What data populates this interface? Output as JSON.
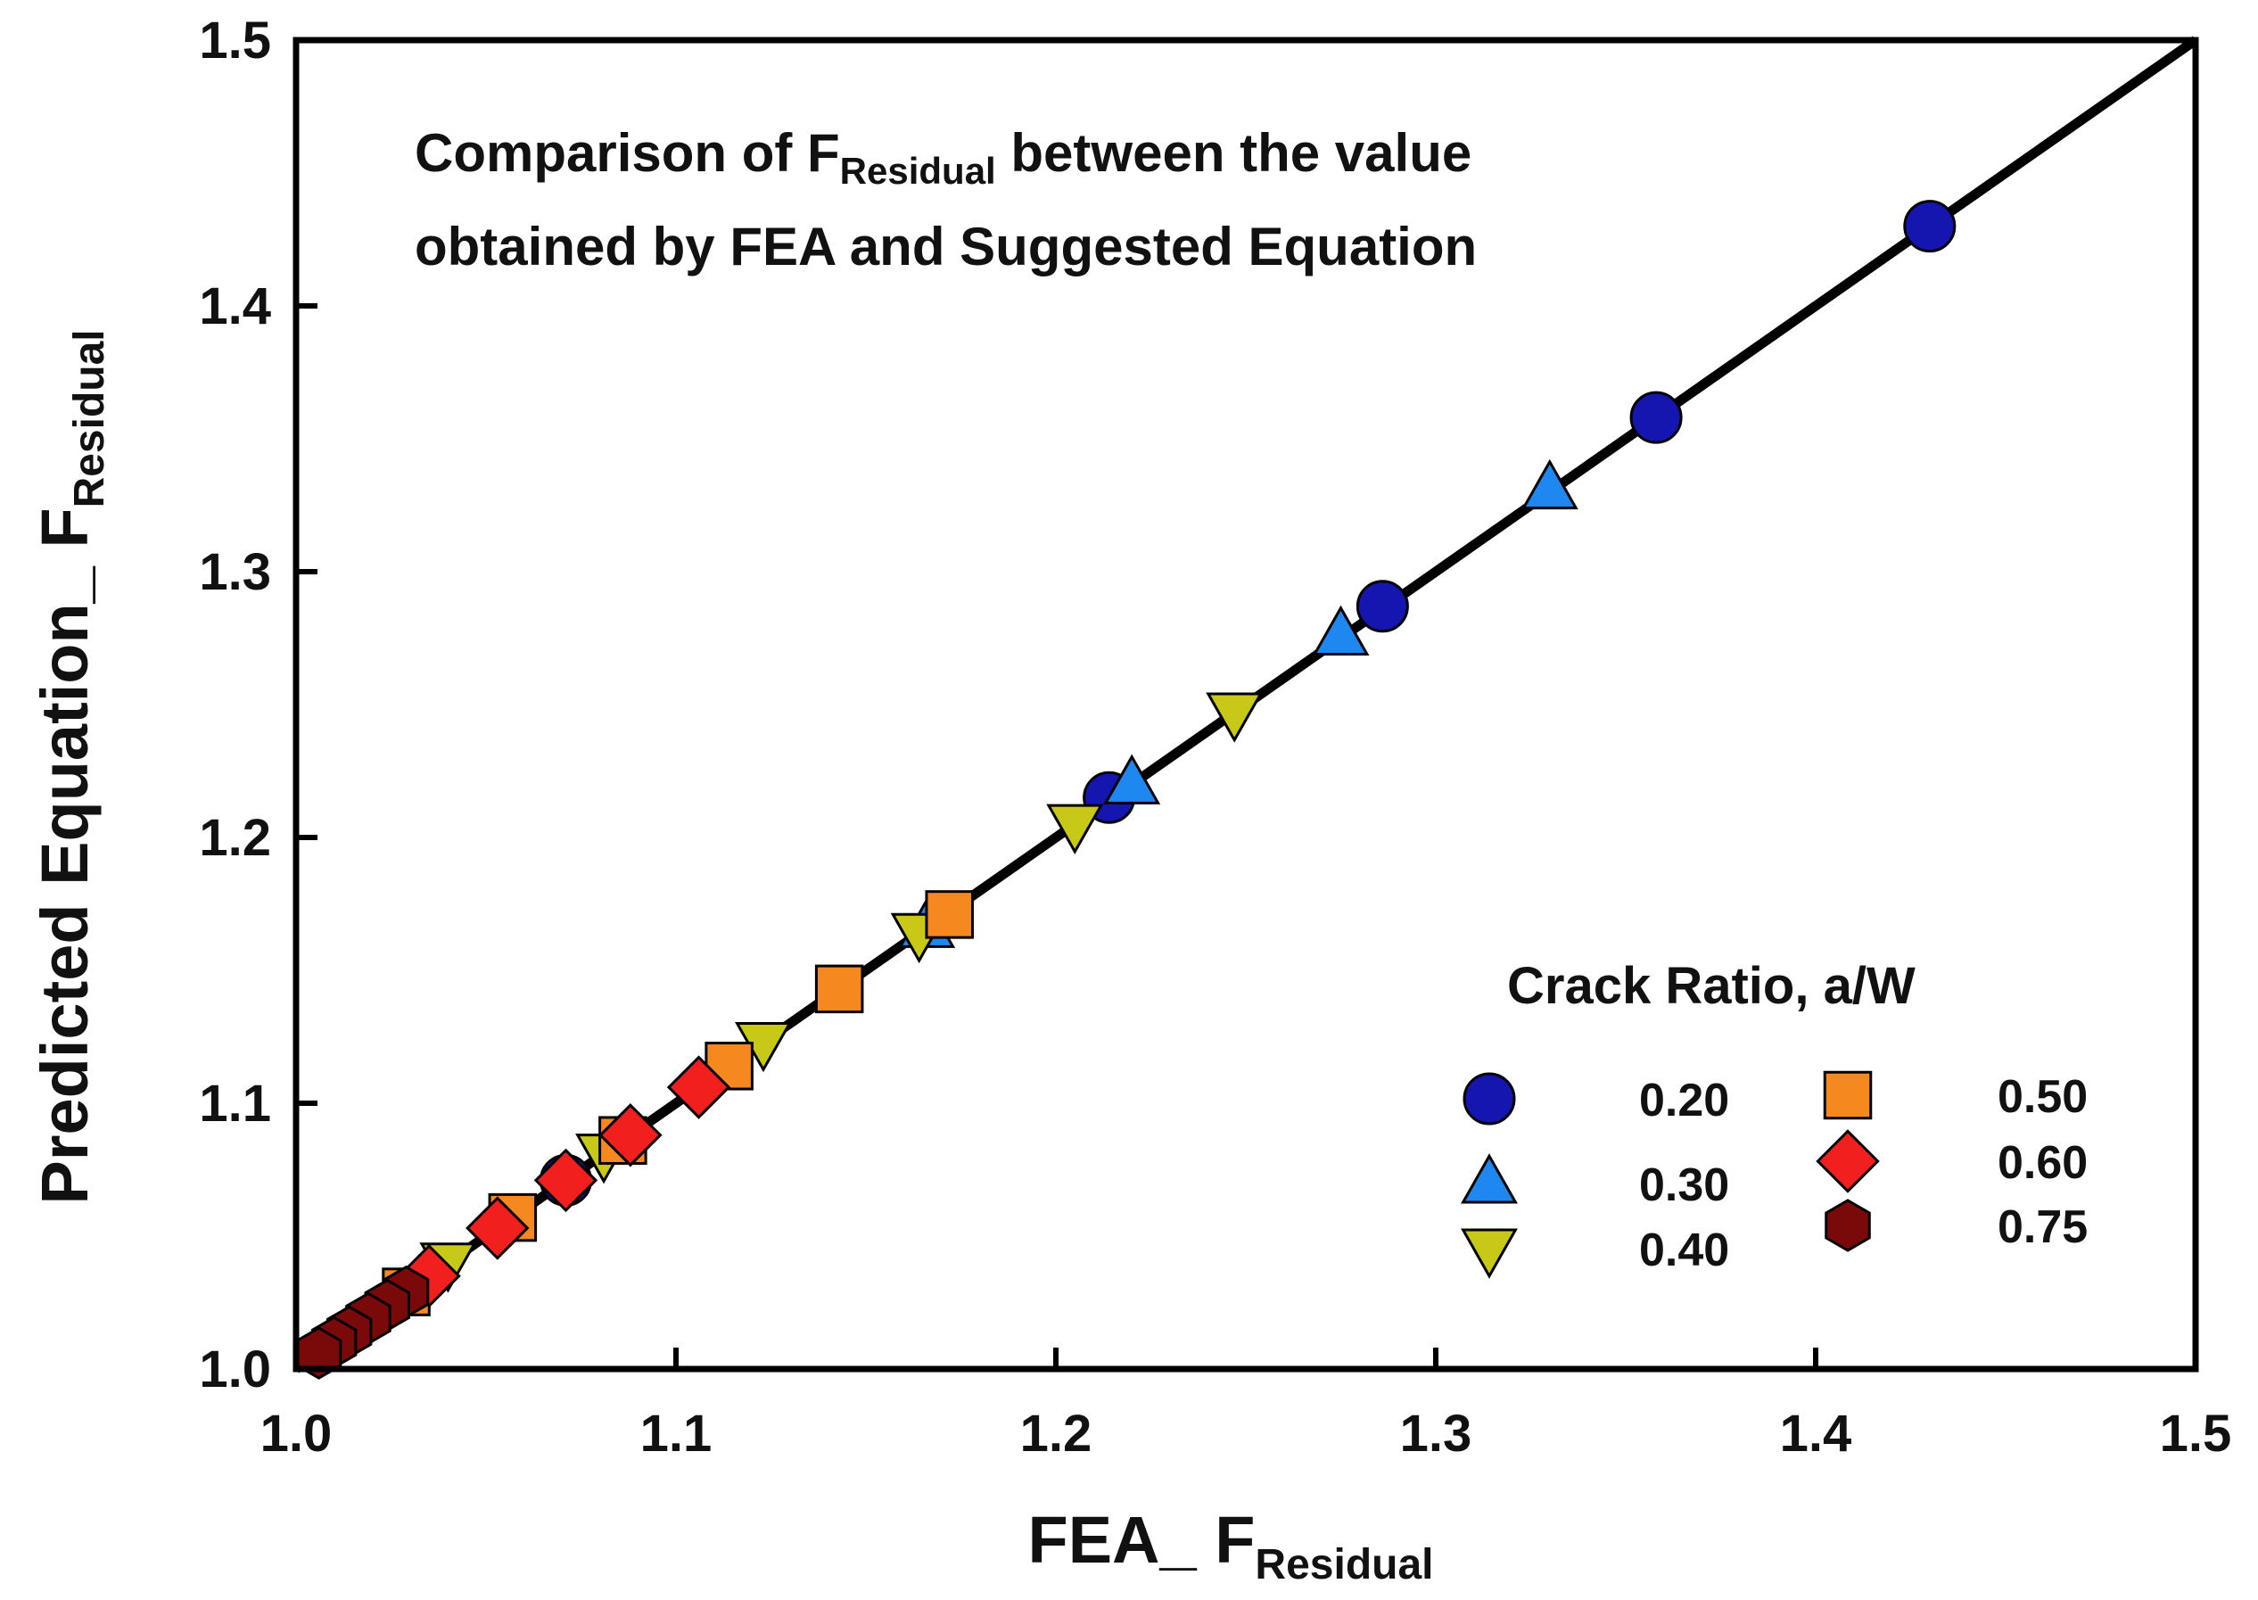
{
  "chart_data": {
    "type": "scatter",
    "title": "",
    "xlabel": {
      "main": "FEA_ F",
      "sub": "Residual"
    },
    "ylabel": {
      "main": "Predicted Equation_ F",
      "sub": "Residual"
    },
    "xlim": [
      1.0,
      1.5
    ],
    "ylim": [
      1.0,
      1.5
    ],
    "x_ticks": [
      "1.0",
      "1.1",
      "1.2",
      "1.3",
      "1.4",
      "1.5"
    ],
    "y_ticks": [
      "1.0",
      "1.1",
      "1.2",
      "1.3",
      "1.4",
      "1.5"
    ],
    "grid": false,
    "annotation": {
      "line1_prefix": "Comparison of F",
      "line1_sub": "Residual",
      "line1_suffix": " between the value",
      "line2": "obtained by FEA and Suggested Equation"
    },
    "reference_line": {
      "name": "y = x",
      "x": [
        1.0,
        1.5
      ],
      "y": [
        1.0,
        1.5
      ],
      "color": "#000000"
    },
    "legend": {
      "title": "Crack Ratio, a/W",
      "placement": "bottom-right"
    },
    "series": [
      {
        "name": "0.20",
        "marker": "circle",
        "color": "#1515b0",
        "x": [
          1.43,
          1.358,
          1.286,
          1.214,
          1.071
        ],
        "y": [
          1.43,
          1.358,
          1.287,
          1.215,
          1.071
        ]
      },
      {
        "name": "0.30",
        "marker": "triangle-up",
        "color": "#1e88f0",
        "x": [
          1.33,
          1.275,
          1.22,
          1.166
        ],
        "y": [
          1.331,
          1.276,
          1.22,
          1.166
        ]
      },
      {
        "name": "0.40",
        "marker": "triangle-down",
        "color": "#c8c818",
        "x": [
          1.247,
          1.205,
          1.164,
          1.123,
          1.081,
          1.04
        ],
        "y": [
          1.247,
          1.205,
          1.164,
          1.123,
          1.081,
          1.04
        ]
      },
      {
        "name": "0.50",
        "marker": "square",
        "color": "#f5891f",
        "x": [
          1.172,
          1.143,
          1.114,
          1.086,
          1.057,
          1.029
        ],
        "y": [
          1.171,
          1.143,
          1.114,
          1.086,
          1.057,
          1.029
        ]
      },
      {
        "name": "0.60",
        "marker": "diamond",
        "color": "#f21f1f",
        "x": [
          1.106,
          1.088,
          1.071,
          1.053,
          1.035
        ],
        "y": [
          1.106,
          1.088,
          1.071,
          1.053,
          1.035
        ]
      },
      {
        "name": "0.75",
        "marker": "hexagon",
        "color": "#7a0a0a",
        "x": [
          1.029,
          1.024,
          1.019,
          1.014,
          1.01,
          1.006
        ],
        "y": [
          1.029,
          1.024,
          1.019,
          1.014,
          1.01,
          1.006
        ]
      }
    ]
  }
}
